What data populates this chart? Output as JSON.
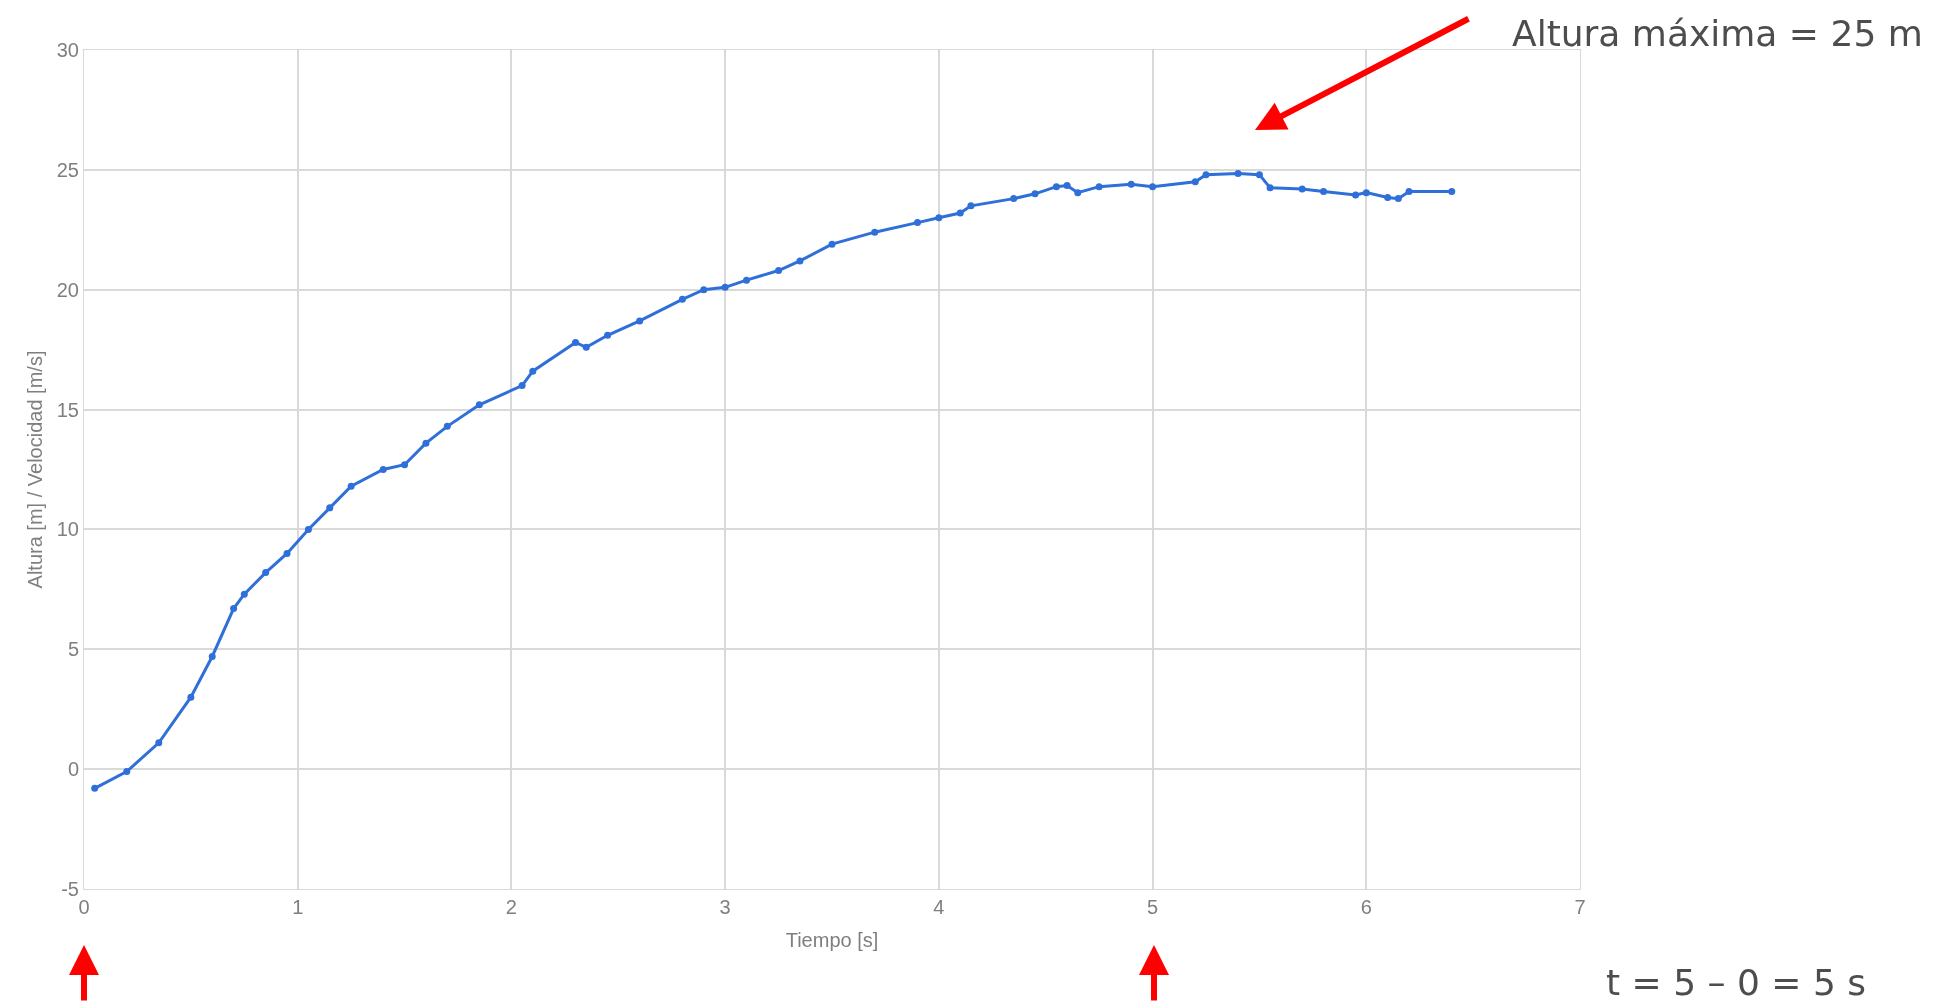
{
  "chart_data": {
    "type": "line",
    "xlabel": "Tiempo [s]",
    "ylabel": "Altura [m] / Velocidad [m/s]",
    "x": [
      0.05,
      0.2,
      0.35,
      0.5,
      0.6,
      0.7,
      0.75,
      0.85,
      0.95,
      1.05,
      1.15,
      1.25,
      1.4,
      1.5,
      1.6,
      1.7,
      1.85,
      2.05,
      2.1,
      2.3,
      2.35,
      2.45,
      2.6,
      2.8,
      2.9,
      3.0,
      3.1,
      3.25,
      3.35,
      3.5,
      3.7,
      3.9,
      4.0,
      4.1,
      4.15,
      4.35,
      4.45,
      4.55,
      4.6,
      4.65,
      4.75,
      4.9,
      5.0,
      5.2,
      5.25,
      5.4,
      5.5,
      5.55,
      5.7,
      5.8,
      5.95,
      6.0,
      6.1,
      6.15,
      6.2,
      6.4
    ],
    "series": [
      {
        "color": "#2f6fd9",
        "values": [
          -0.8,
          -0.1,
          1.1,
          3.0,
          4.7,
          6.7,
          7.3,
          8.2,
          9.0,
          10.0,
          10.9,
          11.8,
          12.5,
          12.7,
          13.6,
          14.3,
          15.2,
          16.0,
          16.6,
          17.8,
          17.6,
          18.1,
          18.7,
          19.6,
          20.0,
          20.1,
          20.4,
          20.8,
          21.2,
          21.9,
          22.4,
          22.8,
          23.0,
          23.2,
          23.5,
          23.8,
          24.0,
          24.3,
          24.35,
          24.05,
          24.3,
          24.4,
          24.3,
          24.5,
          24.8,
          24.85,
          24.8,
          24.25,
          24.2,
          24.1,
          23.95,
          24.05,
          23.85,
          23.8,
          24.1,
          24.1
        ]
      }
    ],
    "xlim": [
      0,
      7
    ],
    "xticks": [
      0,
      1,
      2,
      3,
      4,
      5,
      6,
      7
    ],
    "ylim": [
      -5,
      30
    ],
    "yticks": [
      -5,
      0,
      5,
      10,
      15,
      20,
      25,
      30
    ],
    "grid": true,
    "marker": "circle",
    "line_style": "solid",
    "annotations": [
      "Altura máxima = 25 m",
      "t = 5 – 0 = 5 s"
    ]
  }
}
